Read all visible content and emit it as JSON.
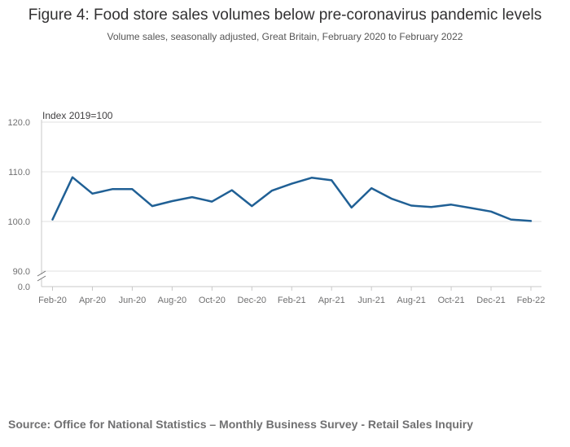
{
  "header": {
    "title": "Figure 4: Food store sales volumes below pre-coronavirus pandemic levels",
    "subtitle": "Volume sales, seasonally adjusted, Great Britain, February 2020 to February 2022"
  },
  "footer": {
    "source": "Source: Office for National Statistics – Monthly Business Survey - Retail Sales Inquiry"
  },
  "chart_data": {
    "type": "line",
    "y_unit_label": "Index 2019=100",
    "y_ticks": [
      "120.0",
      "110.0",
      "100.0",
      "90.0",
      "0.0"
    ],
    "y_tick_values": [
      120,
      110,
      100,
      90,
      0
    ],
    "ylim": [
      90,
      120
    ],
    "axis_break": true,
    "grid": true,
    "x_tick_labels": [
      "Feb-20",
      "Apr-20",
      "Jun-20",
      "Aug-20",
      "Oct-20",
      "Dec-20",
      "Feb-21",
      "Apr-21",
      "Jun-21",
      "Aug-21",
      "Oct-21",
      "Dec-21",
      "Feb-22"
    ],
    "x": [
      "Feb-20",
      "Mar-20",
      "Apr-20",
      "May-20",
      "Jun-20",
      "Jul-20",
      "Aug-20",
      "Sep-20",
      "Oct-20",
      "Nov-20",
      "Dec-20",
      "Jan-21",
      "Feb-21",
      "Mar-21",
      "Apr-21",
      "May-21",
      "Jun-21",
      "Jul-21",
      "Aug-21",
      "Sep-21",
      "Oct-21",
      "Nov-21",
      "Dec-21",
      "Jan-22",
      "Feb-22"
    ],
    "series": [
      {
        "values": [
          100.4,
          108.9,
          105.6,
          106.5,
          106.5,
          103.1,
          104.1,
          104.9,
          104.0,
          106.3,
          103.1,
          106.2,
          107.6,
          108.8,
          108.3,
          102.8,
          106.7,
          104.6,
          103.2,
          102.9,
          103.4,
          102.7,
          102.0,
          100.4,
          100.1
        ],
        "color": "#206095"
      }
    ]
  }
}
